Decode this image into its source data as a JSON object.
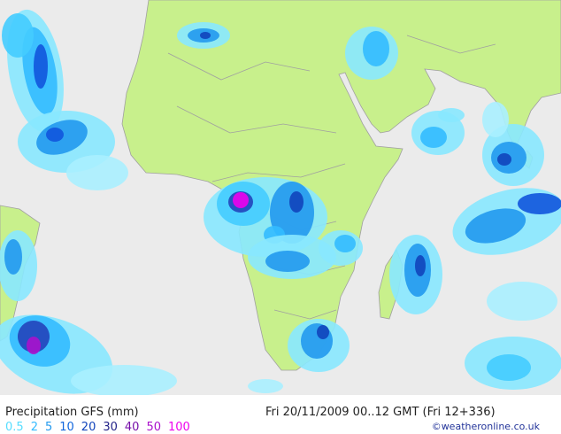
{
  "header": {
    "title": "Precipitation GFS (mm)",
    "timestamp": "Fri 20/11/2009 00..12 GMT (Fri 12+336)",
    "credit": "©weatheronline.co.uk"
  },
  "legend": {
    "levels": [
      {
        "label": "0.5",
        "color": "#55ddff"
      },
      {
        "label": "2",
        "color": "#33bbff"
      },
      {
        "label": "5",
        "color": "#2299ee"
      },
      {
        "label": "10",
        "color": "#1166dd"
      },
      {
        "label": "20",
        "color": "#1144bb"
      },
      {
        "label": "30",
        "color": "#222288"
      },
      {
        "label": "40",
        "color": "#7711aa"
      },
      {
        "label": "50",
        "color": "#aa11cc"
      },
      {
        "label": "100",
        "color": "#ee00ee"
      }
    ]
  }
}
